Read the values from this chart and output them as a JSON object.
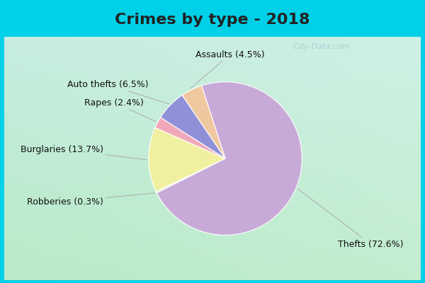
{
  "title": "Crimes by type - 2018",
  "slices": [
    {
      "label": "Thefts",
      "pct": 72.6,
      "color": "#c8aad8"
    },
    {
      "label": "Robberies",
      "pct": 0.3,
      "color": "#d0e8c0"
    },
    {
      "label": "Burglaries",
      "pct": 13.7,
      "color": "#f0f0a0"
    },
    {
      "label": "Rapes",
      "pct": 2.4,
      "color": "#f0a8b8"
    },
    {
      "label": "Auto thefts",
      "pct": 6.5,
      "color": "#9090d8"
    },
    {
      "label": "Assaults",
      "pct": 4.5,
      "color": "#f0c8a0"
    }
  ],
  "bg_color_top": "#00d0e8",
  "bg_color_inner_top": "#c8e8e0",
  "bg_color_inner_bottom": "#c0e8d0",
  "title_fontsize": 16,
  "label_fontsize": 9,
  "watermark": "  City-Data.com"
}
